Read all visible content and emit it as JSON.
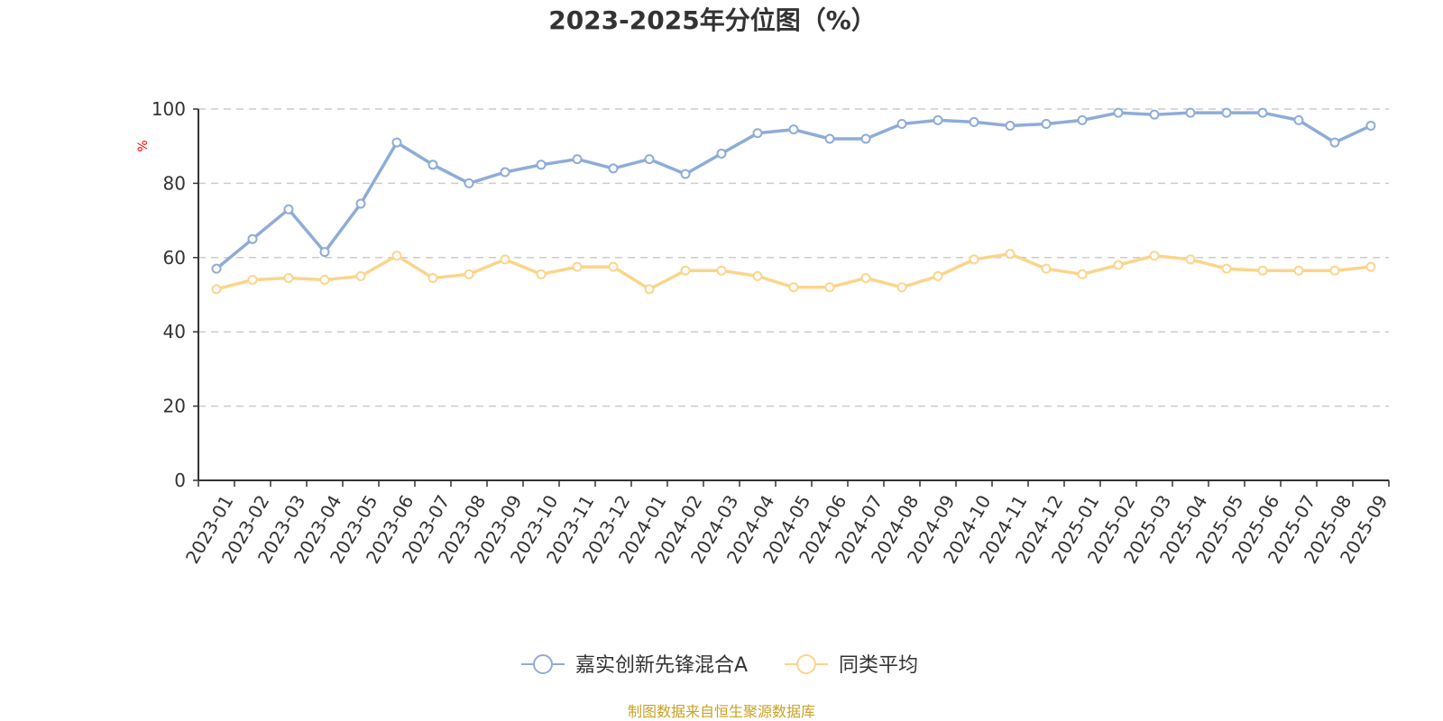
{
  "chart_data": {
    "type": "line",
    "title": "2023-2025年分位图（%）",
    "xlabel": "",
    "ylabel": "%",
    "ylim": [
      0,
      100
    ],
    "yticks": [
      "0",
      "20",
      "40",
      "60",
      "80",
      "100"
    ],
    "grid": true,
    "legend_position": "bottom",
    "categories": [
      "2023-01",
      "2023-02",
      "2023-03",
      "2023-04",
      "2023-05",
      "2023-06",
      "2023-07",
      "2023-08",
      "2023-09",
      "2023-10",
      "2023-11",
      "2023-12",
      "2024-01",
      "2024-02",
      "2024-03",
      "2024-04",
      "2024-05",
      "2024-06",
      "2024-07",
      "2024-08",
      "2024-09",
      "2024-10",
      "2024-11",
      "2024-12",
      "2025-01",
      "2025-02",
      "2025-03",
      "2025-04",
      "2025-05",
      "2025-06",
      "2025-07",
      "2025-08",
      "2025-09"
    ],
    "series": [
      {
        "name": "嘉实创新先锋混合A",
        "color": "#8eacd8",
        "values": [
          57,
          65,
          73,
          61.5,
          74.5,
          91,
          85,
          80,
          83,
          85,
          86.5,
          84,
          86.5,
          82.5,
          88,
          93.5,
          94.5,
          92,
          92,
          96,
          97,
          96.5,
          95.5,
          96,
          97,
          99,
          98.5,
          99,
          99,
          99,
          97,
          91,
          95.5
        ]
      },
      {
        "name": "同类平均",
        "color": "#fbd58c",
        "values": [
          51.5,
          54,
          54.5,
          54,
          55,
          60.5,
          54.5,
          55.5,
          59.5,
          55.5,
          57.5,
          57.5,
          51.5,
          56.5,
          56.5,
          55,
          52,
          52,
          54.5,
          52,
          55,
          59.5,
          61,
          57,
          55.5,
          58,
          60.5,
          59.5,
          57,
          56.5,
          56.5,
          56.5,
          57.5
        ]
      }
    ]
  },
  "source_text": "制图数据来自恒生聚源数据库",
  "colors": {
    "axis": "#333333",
    "grid": "#cccccc",
    "ylabel": "#ff0000",
    "source": "#c9a227"
  }
}
